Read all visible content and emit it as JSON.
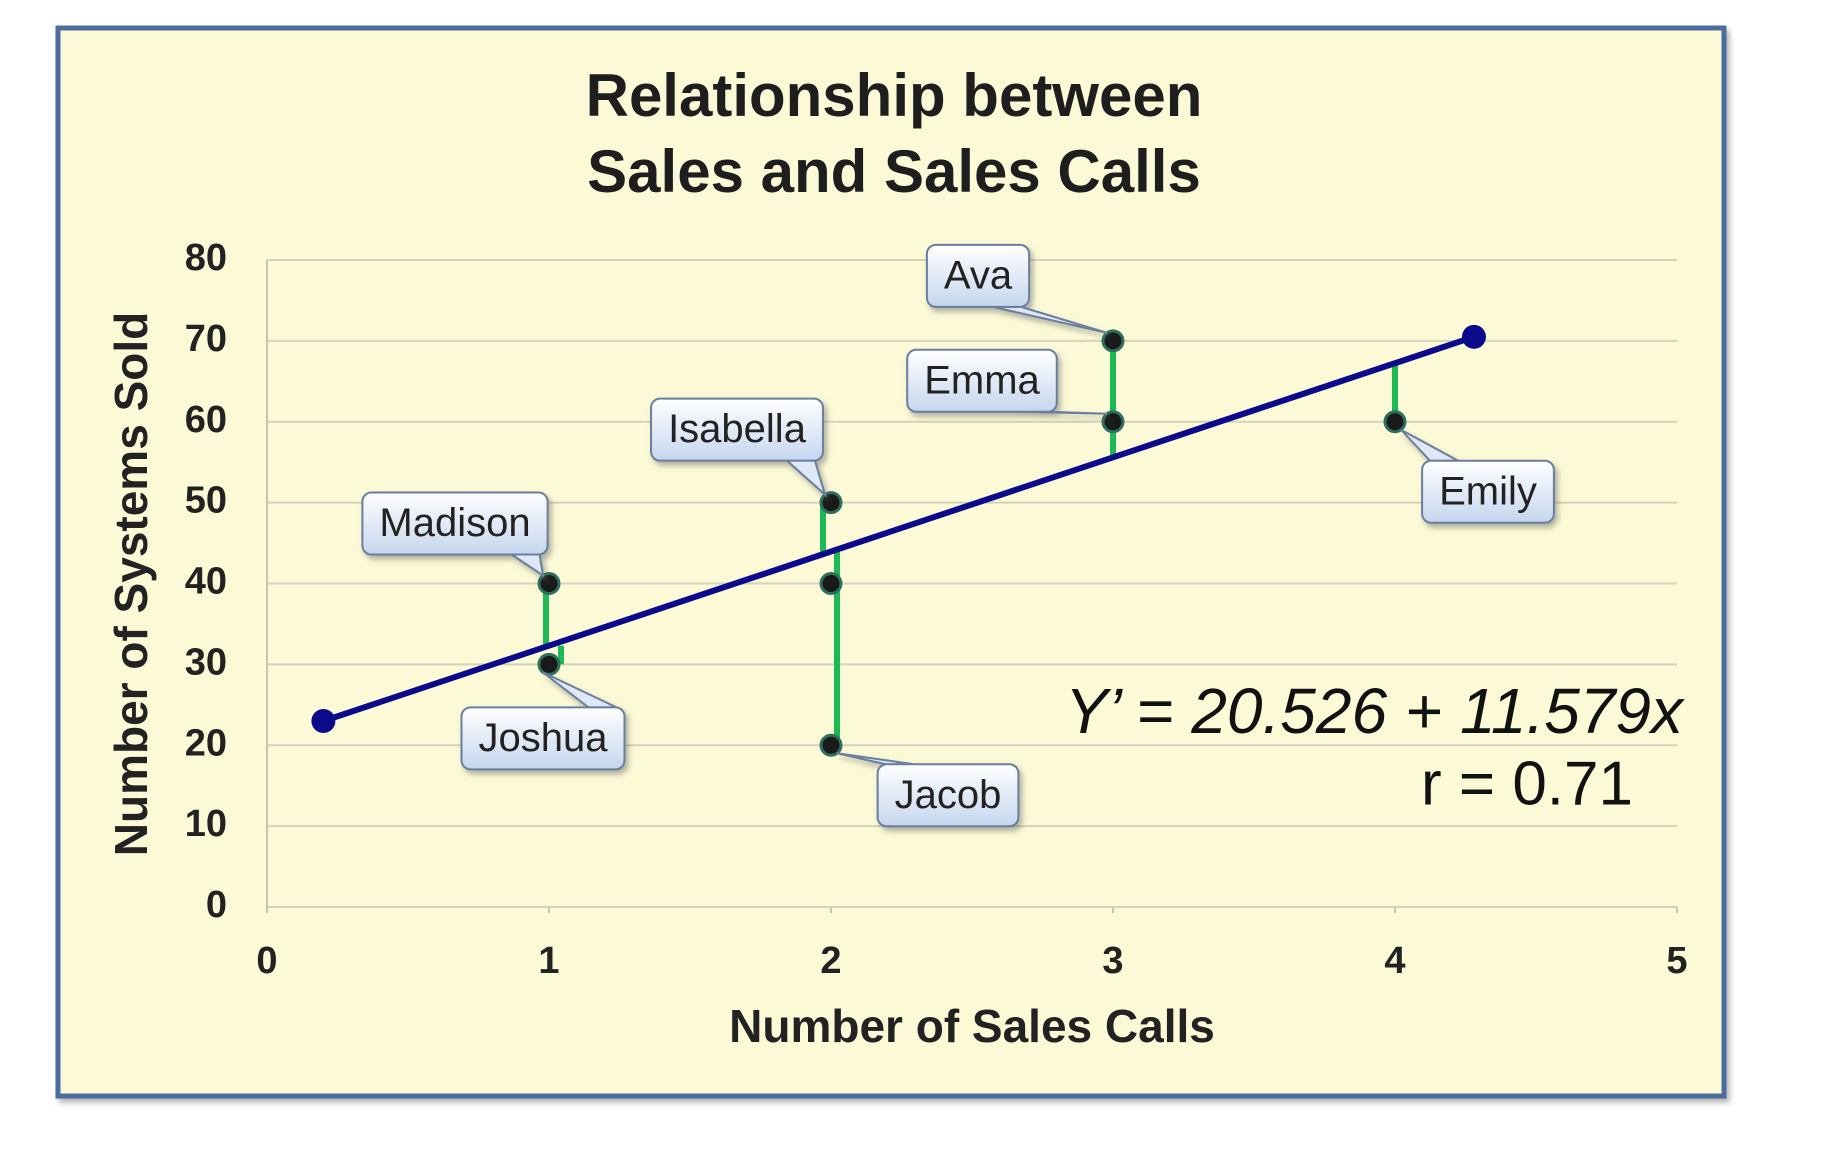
{
  "chart_data": {
    "type": "scatter",
    "title": [
      "Relationship between",
      "Sales and Sales Calls"
    ],
    "x_label": "Number of Sales Calls",
    "y_label": "Number of Systems Sold",
    "x": [
      1,
      1,
      2,
      2,
      2,
      3,
      3,
      4
    ],
    "values": [
      40,
      30,
      50,
      40,
      20,
      70,
      60,
      60
    ],
    "labels": [
      "Madison",
      "Joshua",
      "Isabella",
      null,
      "Jacob",
      "Ava",
      "Emma",
      "Emily"
    ],
    "color": "#1a1a1a",
    "residual_color": "#1db954",
    "trend_line": {
      "x": [
        0.2,
        4.28
      ],
      "values": [
        23,
        70.5
      ],
      "color": "#0a0a8a"
    },
    "annotations": [
      "Y’ = 20.526 + 11.579x",
      "r =  0.71"
    ],
    "xlim": [
      0,
      5
    ],
    "xticks": [
      0,
      1,
      2,
      3,
      4,
      5
    ],
    "ylim": [
      0,
      80
    ],
    "yticks": [
      0,
      10,
      20,
      30,
      40,
      50,
      60,
      70,
      80
    ],
    "grid": true
  }
}
